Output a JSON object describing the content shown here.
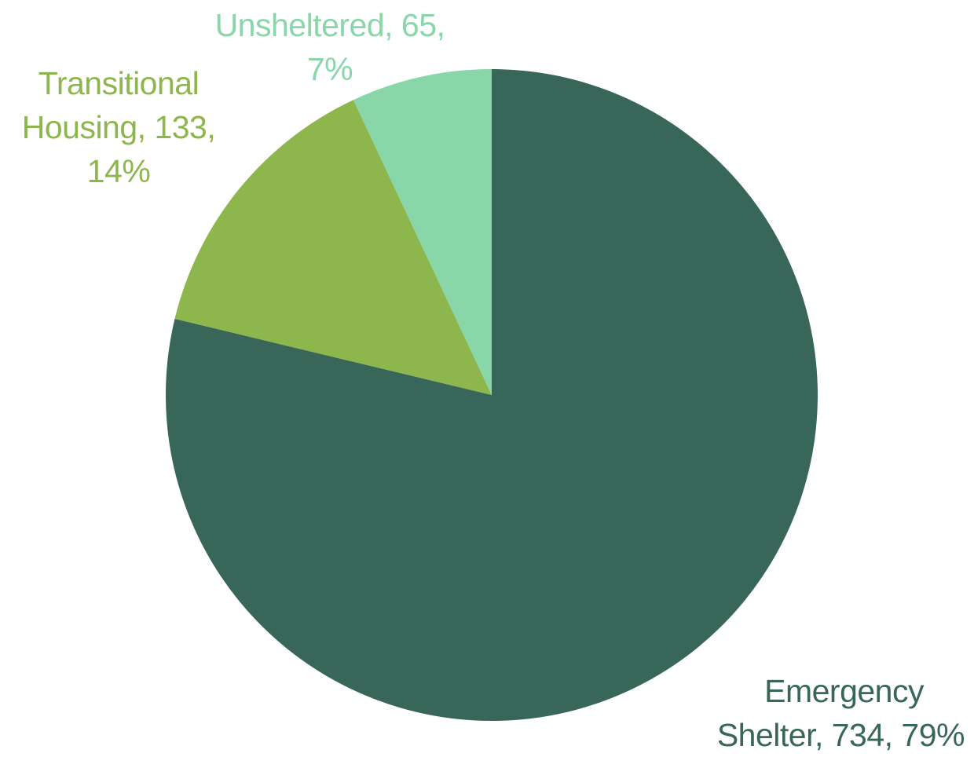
{
  "chart_data": {
    "type": "pie",
    "title": "",
    "start_angle_deg": 0,
    "direction": "clockwise",
    "slices": [
      {
        "name": "Emergency Shelter",
        "value": 734,
        "percent": "79%",
        "label_lines": [
          "Emergency",
          "Shelter, 734, 79%"
        ],
        "color": "#386658"
      },
      {
        "name": "Transitional Housing",
        "value": 133,
        "percent": "14%",
        "label_lines": [
          "Transitional",
          "Housing, 133,",
          "14%"
        ],
        "color": "#8db64d"
      },
      {
        "name": "Unsheltered",
        "value": 65,
        "percent": "7%",
        "label_lines": [
          "Unsheltered, 65,",
          "7%"
        ],
        "color": "#89d6a9"
      }
    ],
    "legend": "none",
    "data_labels": "outside"
  }
}
